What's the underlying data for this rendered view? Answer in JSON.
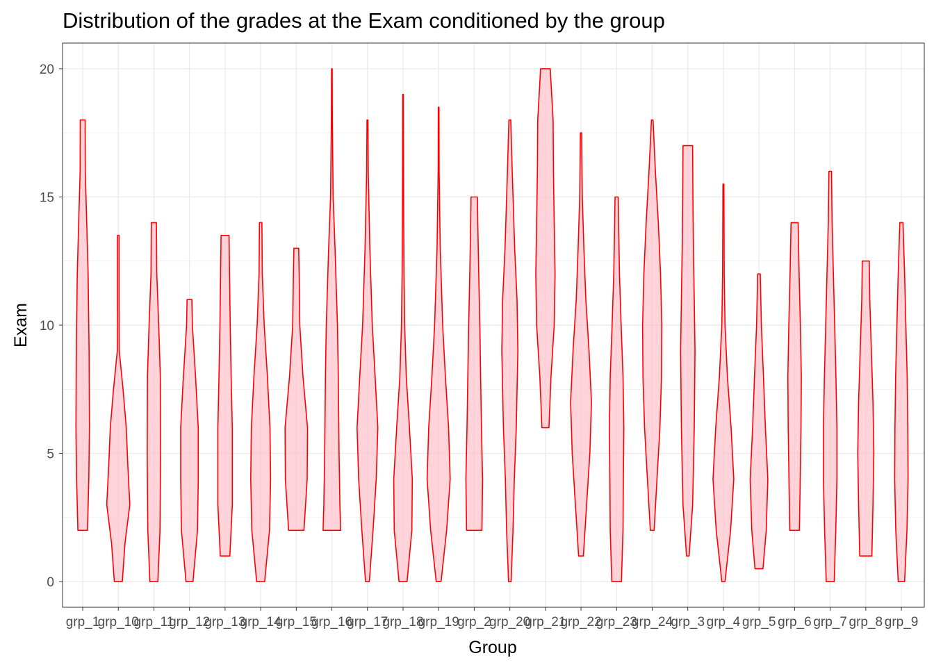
{
  "chart_data": {
    "type": "violin",
    "title": "Distribution of the grades at the Exam conditioned by the group",
    "xlabel": "Group",
    "ylabel": "Exam",
    "ylim": [
      -1,
      21
    ],
    "yticks": [
      0,
      5,
      10,
      15,
      20
    ],
    "grid": true,
    "legend": "none",
    "colors": {
      "outline": "#ff0000",
      "fill": "#ffc0cb",
      "fill_opacity": 0.7,
      "grid": "#ebebeb",
      "panel_border": "#333333"
    },
    "categories": [
      "grp_1",
      "grp_10",
      "grp_11",
      "grp_12",
      "grp_13",
      "grp_14",
      "grp_15",
      "grp_16",
      "grp_17",
      "grp_18",
      "grp_19",
      "grp_2",
      "grp_20",
      "grp_21",
      "grp_22",
      "grp_23",
      "grp_24",
      "grp_3",
      "grp_4",
      "grp_5",
      "grp_6",
      "grp_7",
      "grp_8",
      "grp_9"
    ],
    "violins": [
      {
        "group": "grp_1",
        "min": 2,
        "max": 18,
        "profile": [
          [
            2,
            0.3
          ],
          [
            4,
            0.38
          ],
          [
            6,
            0.42
          ],
          [
            9,
            0.4
          ],
          [
            12,
            0.34
          ],
          [
            14,
            0.25
          ],
          [
            16,
            0.16
          ],
          [
            18,
            0.15
          ]
        ]
      },
      {
        "group": "grp_10",
        "min": 0,
        "max": 13.5,
        "profile": [
          [
            0,
            0.25
          ],
          [
            1.5,
            0.42
          ],
          [
            3,
            0.72
          ],
          [
            4.5,
            0.6
          ],
          [
            6,
            0.5
          ],
          [
            7.5,
            0.3
          ],
          [
            9,
            0.06
          ],
          [
            11,
            0.05
          ],
          [
            13.5,
            0.05
          ]
        ]
      },
      {
        "group": "grp_11",
        "min": 0,
        "max": 14,
        "profile": [
          [
            0,
            0.25
          ],
          [
            2,
            0.38
          ],
          [
            5,
            0.42
          ],
          [
            8,
            0.4
          ],
          [
            10,
            0.3
          ],
          [
            12,
            0.18
          ],
          [
            14,
            0.16
          ]
        ]
      },
      {
        "group": "grp_12",
        "min": 0,
        "max": 11,
        "profile": [
          [
            0,
            0.22
          ],
          [
            2,
            0.5
          ],
          [
            4,
            0.55
          ],
          [
            6,
            0.55
          ],
          [
            8,
            0.38
          ],
          [
            10,
            0.18
          ],
          [
            11,
            0.15
          ]
        ]
      },
      {
        "group": "grp_13",
        "min": 1,
        "max": 13.5,
        "profile": [
          [
            1,
            0.3
          ],
          [
            3,
            0.45
          ],
          [
            6,
            0.45
          ],
          [
            8,
            0.38
          ],
          [
            10,
            0.32
          ],
          [
            12,
            0.28
          ],
          [
            13.5,
            0.25
          ]
        ]
      },
      {
        "group": "grp_14",
        "min": 0,
        "max": 14,
        "profile": [
          [
            0,
            0.25
          ],
          [
            2,
            0.55
          ],
          [
            4,
            0.62
          ],
          [
            6,
            0.58
          ],
          [
            8,
            0.42
          ],
          [
            10,
            0.22
          ],
          [
            12,
            0.1
          ],
          [
            14,
            0.08
          ]
        ]
      },
      {
        "group": "grp_15",
        "min": 2,
        "max": 13,
        "profile": [
          [
            2,
            0.48
          ],
          [
            4,
            0.68
          ],
          [
            6,
            0.7
          ],
          [
            8,
            0.42
          ],
          [
            10,
            0.22
          ],
          [
            12,
            0.18
          ],
          [
            13,
            0.15
          ]
        ]
      },
      {
        "group": "grp_16",
        "min": 2,
        "max": 20,
        "profile": [
          [
            2,
            0.55
          ],
          [
            3,
            0.5
          ],
          [
            5,
            0.45
          ],
          [
            8,
            0.4
          ],
          [
            10,
            0.35
          ],
          [
            13,
            0.2
          ],
          [
            15,
            0.08
          ],
          [
            18,
            0.03
          ],
          [
            20,
            0.02
          ]
        ]
      },
      {
        "group": "grp_17",
        "min": 0,
        "max": 18,
        "profile": [
          [
            0,
            0.12
          ],
          [
            2,
            0.35
          ],
          [
            4,
            0.55
          ],
          [
            6,
            0.65
          ],
          [
            8,
            0.48
          ],
          [
            10,
            0.3
          ],
          [
            13,
            0.15
          ],
          [
            16,
            0.05
          ],
          [
            18,
            0.03
          ]
        ]
      },
      {
        "group": "grp_18",
        "min": 0,
        "max": 19,
        "profile": [
          [
            0,
            0.25
          ],
          [
            2,
            0.55
          ],
          [
            4,
            0.58
          ],
          [
            6,
            0.4
          ],
          [
            8,
            0.2
          ],
          [
            10,
            0.1
          ],
          [
            12,
            0.06
          ],
          [
            14,
            0.04
          ],
          [
            16,
            0.03
          ],
          [
            19,
            0.02
          ]
        ]
      },
      {
        "group": "grp_19",
        "min": 0,
        "max": 18.5,
        "profile": [
          [
            0,
            0.15
          ],
          [
            2,
            0.5
          ],
          [
            4,
            0.72
          ],
          [
            6,
            0.62
          ],
          [
            8,
            0.42
          ],
          [
            10,
            0.25
          ],
          [
            13,
            0.1
          ],
          [
            16,
            0.03
          ],
          [
            18.5,
            0.02
          ]
        ]
      },
      {
        "group": "grp_2",
        "min": 2,
        "max": 15,
        "profile": [
          [
            2,
            0.48
          ],
          [
            4,
            0.52
          ],
          [
            6,
            0.45
          ],
          [
            8,
            0.4
          ],
          [
            10,
            0.35
          ],
          [
            12,
            0.28
          ],
          [
            14,
            0.22
          ],
          [
            15,
            0.2
          ]
        ]
      },
      {
        "group": "grp_20",
        "min": 0,
        "max": 18,
        "profile": [
          [
            0,
            0.08
          ],
          [
            2,
            0.2
          ],
          [
            4,
            0.28
          ],
          [
            6,
            0.4
          ],
          [
            9,
            0.5
          ],
          [
            11,
            0.45
          ],
          [
            13,
            0.3
          ],
          [
            16,
            0.15
          ],
          [
            18,
            0.06
          ]
        ]
      },
      {
        "group": "grp_21",
        "min": 6,
        "max": 20,
        "profile": [
          [
            6,
            0.22
          ],
          [
            8,
            0.35
          ],
          [
            10,
            0.55
          ],
          [
            12,
            0.6
          ],
          [
            14,
            0.55
          ],
          [
            16,
            0.5
          ],
          [
            18,
            0.48
          ],
          [
            20,
            0.3
          ]
        ]
      },
      {
        "group": "grp_22",
        "min": 1,
        "max": 17.5,
        "profile": [
          [
            1,
            0.15
          ],
          [
            3,
            0.35
          ],
          [
            5,
            0.55
          ],
          [
            7,
            0.65
          ],
          [
            9,
            0.5
          ],
          [
            11,
            0.3
          ],
          [
            13,
            0.18
          ],
          [
            15,
            0.08
          ],
          [
            17.5,
            0.04
          ]
        ]
      },
      {
        "group": "grp_23",
        "min": 0,
        "max": 15,
        "profile": [
          [
            0,
            0.3
          ],
          [
            2,
            0.4
          ],
          [
            4,
            0.42
          ],
          [
            6,
            0.45
          ],
          [
            8,
            0.4
          ],
          [
            10,
            0.28
          ],
          [
            12,
            0.18
          ],
          [
            14,
            0.12
          ],
          [
            15,
            0.1
          ]
        ]
      },
      {
        "group": "grp_24",
        "min": 2,
        "max": 18,
        "profile": [
          [
            2,
            0.12
          ],
          [
            4,
            0.3
          ],
          [
            6,
            0.48
          ],
          [
            8,
            0.58
          ],
          [
            10,
            0.6
          ],
          [
            12,
            0.52
          ],
          [
            14,
            0.38
          ],
          [
            16,
            0.2
          ],
          [
            18,
            0.05
          ]
        ]
      },
      {
        "group": "grp_3",
        "min": 1,
        "max": 17,
        "profile": [
          [
            1,
            0.08
          ],
          [
            3,
            0.3
          ],
          [
            6,
            0.4
          ],
          [
            9,
            0.45
          ],
          [
            11,
            0.4
          ],
          [
            13,
            0.35
          ],
          [
            15,
            0.32
          ],
          [
            17,
            0.3
          ]
        ]
      },
      {
        "group": "grp_4",
        "min": 0,
        "max": 15.5,
        "profile": [
          [
            0,
            0.1
          ],
          [
            2,
            0.45
          ],
          [
            4,
            0.65
          ],
          [
            6,
            0.48
          ],
          [
            8,
            0.25
          ],
          [
            10,
            0.1
          ],
          [
            12,
            0.05
          ],
          [
            15.5,
            0.03
          ]
        ]
      },
      {
        "group": "grp_5",
        "min": 0.5,
        "max": 12,
        "profile": [
          [
            0.5,
            0.25
          ],
          [
            2,
            0.45
          ],
          [
            4,
            0.55
          ],
          [
            6,
            0.4
          ],
          [
            8,
            0.28
          ],
          [
            10,
            0.15
          ],
          [
            12,
            0.08
          ]
        ]
      },
      {
        "group": "grp_6",
        "min": 2,
        "max": 14,
        "profile": [
          [
            2,
            0.3
          ],
          [
            4,
            0.35
          ],
          [
            6,
            0.4
          ],
          [
            8,
            0.42
          ],
          [
            10,
            0.36
          ],
          [
            12,
            0.28
          ],
          [
            14,
            0.22
          ]
        ]
      },
      {
        "group": "grp_7",
        "min": 0,
        "max": 16,
        "profile": [
          [
            0,
            0.25
          ],
          [
            2,
            0.35
          ],
          [
            4,
            0.42
          ],
          [
            6,
            0.42
          ],
          [
            8,
            0.36
          ],
          [
            10,
            0.28
          ],
          [
            12,
            0.2
          ],
          [
            14,
            0.12
          ],
          [
            16,
            0.08
          ]
        ]
      },
      {
        "group": "grp_8",
        "min": 1,
        "max": 12.5,
        "profile": [
          [
            1,
            0.38
          ],
          [
            3,
            0.45
          ],
          [
            5,
            0.5
          ],
          [
            7,
            0.45
          ],
          [
            9,
            0.35
          ],
          [
            11,
            0.25
          ],
          [
            12.5,
            0.22
          ]
        ]
      },
      {
        "group": "grp_9",
        "min": 0,
        "max": 14,
        "profile": [
          [
            0,
            0.2
          ],
          [
            2,
            0.35
          ],
          [
            4,
            0.42
          ],
          [
            6,
            0.4
          ],
          [
            8,
            0.36
          ],
          [
            10,
            0.28
          ],
          [
            12,
            0.2
          ],
          [
            14,
            0.1
          ]
        ]
      }
    ]
  }
}
